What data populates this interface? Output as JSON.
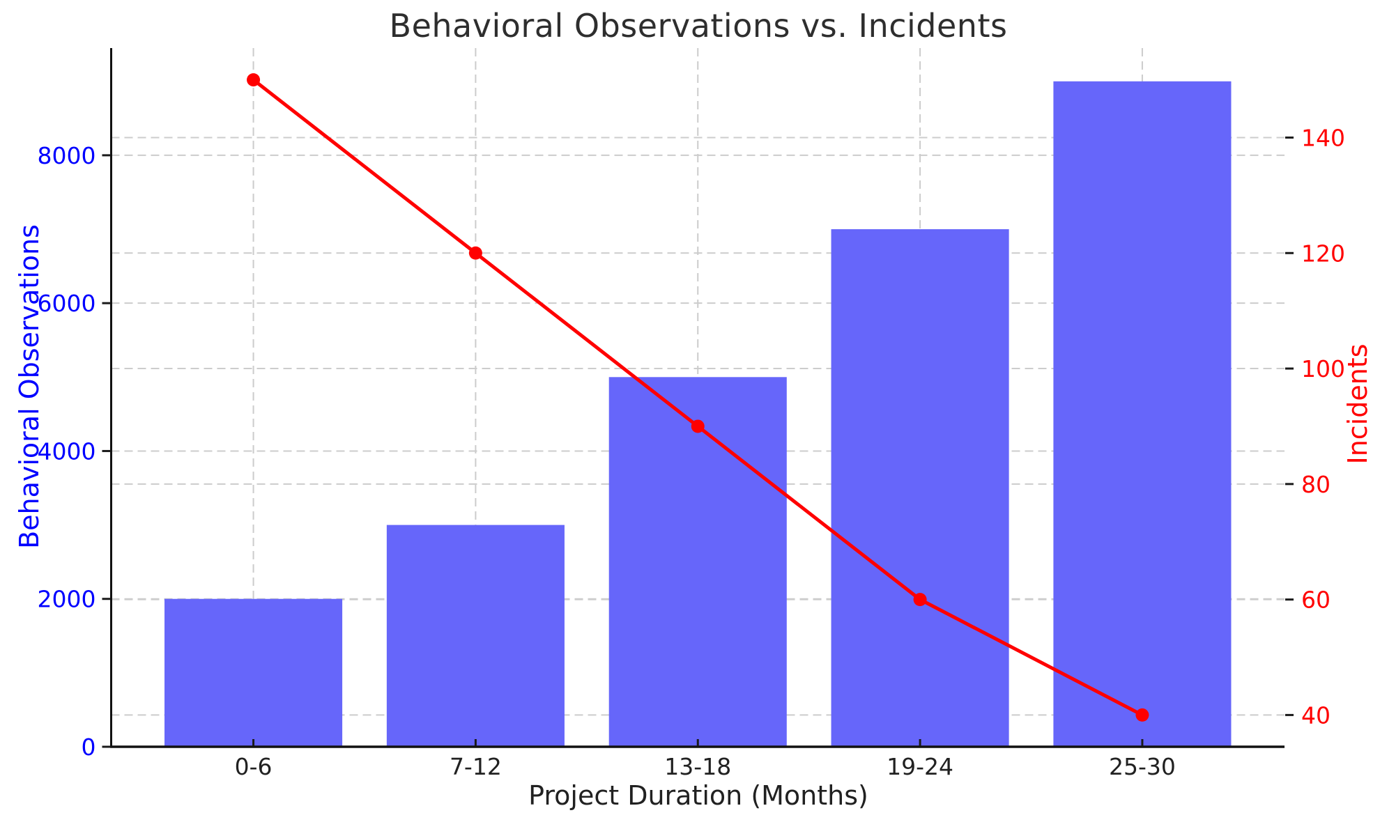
{
  "chart_data": {
    "type": "combo-bar-line",
    "title": "Behavioral Observations vs. Incidents",
    "xlabel": "Project Duration (Months)",
    "categories": [
      "0-6",
      "7-12",
      "13-18",
      "19-24",
      "25-30"
    ],
    "series": [
      {
        "name": "Behavioral Observations",
        "type": "bar",
        "axis": "left",
        "color": "#6666fa",
        "values": [
          2000,
          3000,
          5000,
          7000,
          9000
        ]
      },
      {
        "name": "Incidents",
        "type": "line",
        "axis": "right",
        "color": "#ff0000",
        "marker": "circle",
        "values": [
          150,
          120,
          90,
          60,
          40
        ]
      }
    ],
    "left_axis": {
      "label": "Behavioral Observations",
      "ticks": [
        0,
        2000,
        4000,
        6000,
        8000
      ],
      "lim": [
        0,
        9450
      ],
      "label_color": "#0000ff"
    },
    "right_axis": {
      "label": "Incidents",
      "ticks": [
        40,
        60,
        80,
        100,
        120,
        140
      ],
      "lim": [
        34.5,
        155.5
      ],
      "label_color": "#ff0000"
    },
    "grid": true,
    "grid_color": "#cccccc",
    "spine_color": "#111111",
    "legend_position": "none"
  }
}
